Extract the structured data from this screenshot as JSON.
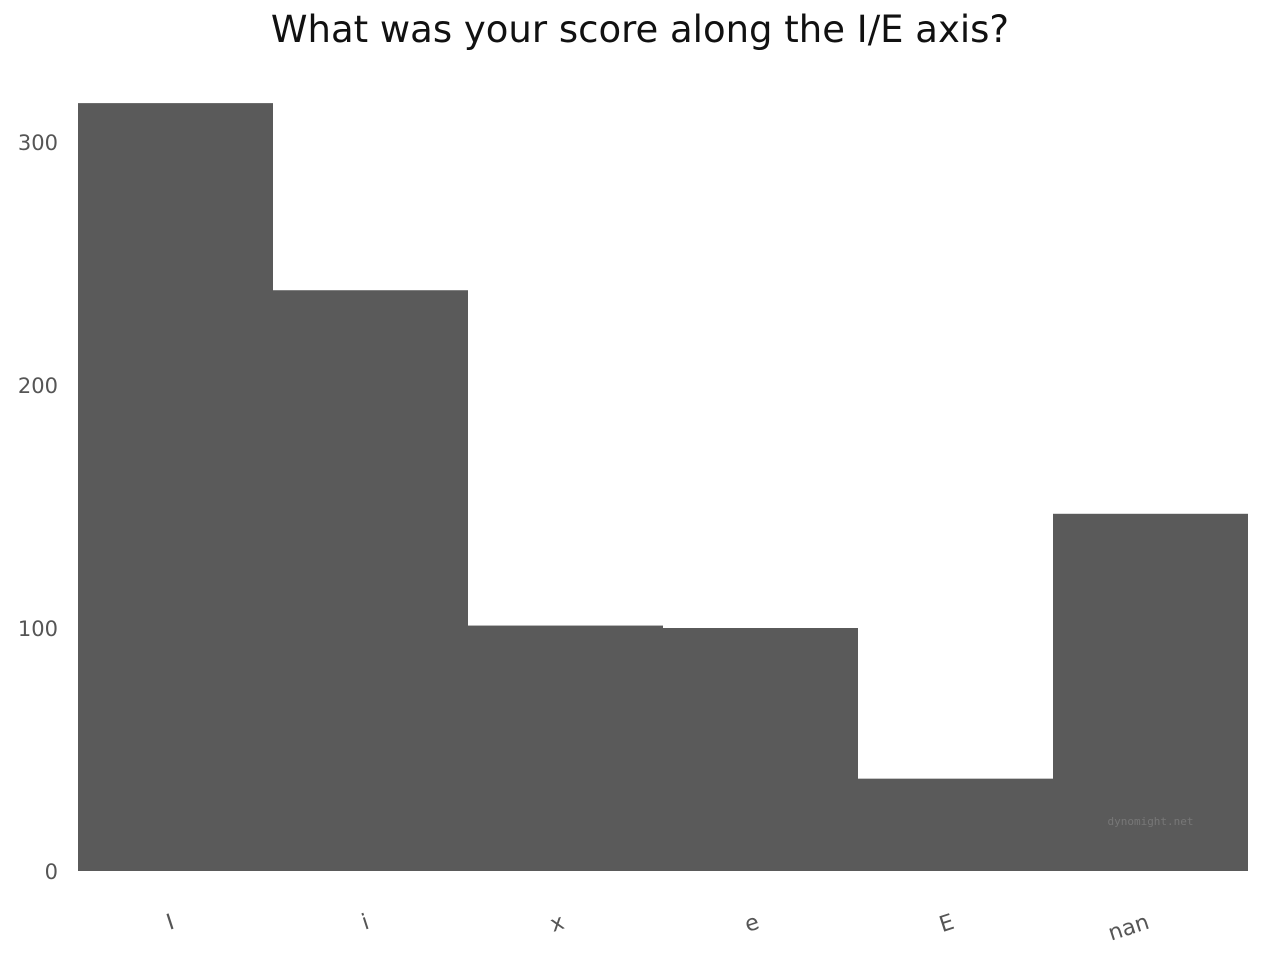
{
  "chart_data": {
    "type": "bar",
    "title": "What was your score along the I/E axis?",
    "categories": [
      "I",
      "i",
      "x",
      "e",
      "E",
      "nan"
    ],
    "values": [
      316,
      239,
      101,
      100,
      38,
      147
    ],
    "xlabel": "",
    "ylabel": "",
    "ylim": [
      0,
      330
    ],
    "yticks": [
      0,
      100,
      200,
      300
    ],
    "grid": false,
    "bar_color": "#5a5a5a",
    "watermark": "dynomight.net"
  }
}
